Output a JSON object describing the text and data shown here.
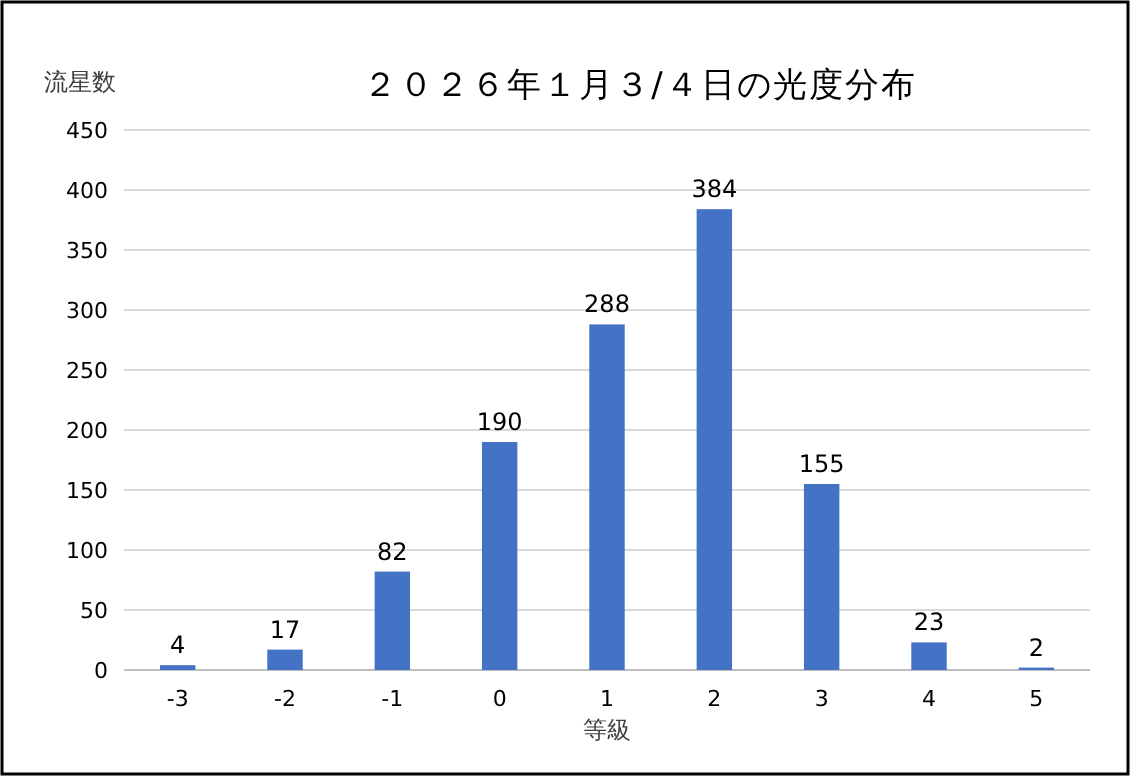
{
  "chart_data": {
    "type": "bar",
    "title": "２０２６年１月３/４日の光度分布",
    "xlabel": "等級",
    "ylabel": "流星数",
    "categories": [
      "-3",
      "-2",
      "-1",
      "0",
      "1",
      "2",
      "3",
      "4",
      "5"
    ],
    "values": [
      4,
      17,
      82,
      190,
      288,
      384,
      155,
      23,
      2
    ],
    "color": "#4472c4",
    "ylim": [
      0,
      450
    ],
    "yticks": [
      0,
      50,
      100,
      150,
      200,
      250,
      300,
      350,
      400,
      450
    ],
    "grid": "y",
    "data_labels": true
  }
}
